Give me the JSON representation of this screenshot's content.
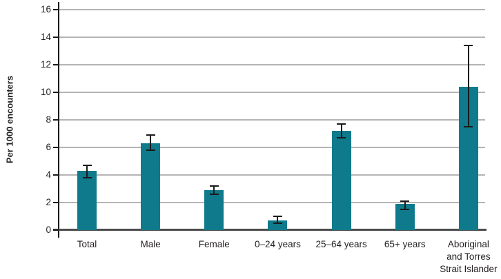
{
  "chart_data": {
    "type": "bar",
    "title": "",
    "ylabel": "Per 1000 encounters",
    "xlabel": "",
    "categories": [
      "Total",
      "Male",
      "Female",
      "0–24 years",
      "25–64 years",
      "65+ years",
      "Aboriginal\nand Torres\nStrait Islander"
    ],
    "values": [
      4.3,
      6.3,
      2.9,
      0.7,
      7.2,
      1.9,
      10.4
    ],
    "error_low": [
      3.8,
      5.8,
      2.6,
      0.5,
      6.7,
      1.5,
      7.5
    ],
    "error_high": [
      4.7,
      6.9,
      3.2,
      1.0,
      7.7,
      2.1,
      13.4
    ],
    "ylim": [
      0,
      16
    ],
    "yticks": [
      0,
      2,
      4,
      6,
      8,
      10,
      12,
      14,
      16
    ],
    "grid": true,
    "legend_position": "none",
    "bar_color": "#0e7a8b",
    "error_color": "#1a1a1a",
    "gridline_color": "#b4b4b4",
    "axis_color": "#1a1a1a",
    "text_color": "#231f20"
  }
}
